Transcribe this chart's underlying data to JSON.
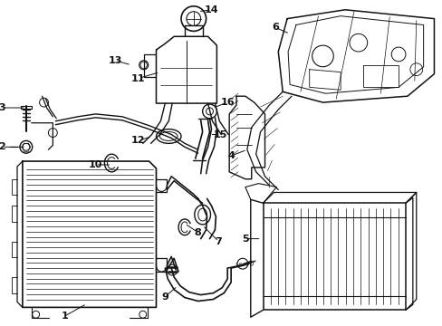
{
  "bg_color": "#ffffff",
  "line_color": "#111111",
  "lw": 0.8,
  "fig_w": 4.89,
  "fig_h": 3.6,
  "dpi": 100
}
